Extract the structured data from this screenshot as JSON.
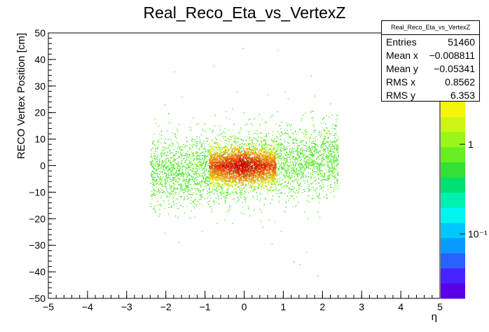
{
  "chart_data": {
    "type": "heatmap",
    "title": "Real_Reco_Eta_vs_VertexZ",
    "xlabel": "η",
    "ylabel": "RECO Vertex Position [cm]",
    "xlim": [
      -5,
      5
    ],
    "ylim": [
      -50,
      50
    ],
    "x_ticks": [
      "−5",
      "−4",
      "−3",
      "−2",
      "−1",
      "0",
      "1",
      "2",
      "3",
      "4",
      "5"
    ],
    "y_ticks": [
      "−50",
      "−40",
      "−30",
      "−20",
      "−10",
      "0",
      "10",
      "20",
      "30",
      "40",
      "50"
    ],
    "color_scale": {
      "log": true,
      "labels": [
        "1",
        "10⁻¹"
      ],
      "colors": [
        "#5a00e6",
        "#4a22ff",
        "#2a62ff",
        "#0a9aff",
        "#00c8ff",
        "#00f5f0",
        "#00f0b0",
        "#00e070",
        "#33e033",
        "#66ee22",
        "#99f51a",
        "#ccf515",
        "#f5f50a"
      ]
    },
    "distribution": {
      "eta_extent": [
        -2.4,
        2.4
      ],
      "vertex_z_core": [
        -12,
        12
      ],
      "hot_region_eta": [
        -0.9,
        0.8
      ],
      "hot_region_z": [
        -7,
        7
      ]
    },
    "stats": {
      "title": "Real_Reco_Eta_vs_VertexZ",
      "rows": [
        {
          "label": "Entries",
          "value": "51460"
        },
        {
          "label": "Mean x",
          "value": "−0.008811"
        },
        {
          "label": "Mean y",
          "value": "−0.05341"
        },
        {
          "label": "RMS x",
          "value": "0.8562"
        },
        {
          "label": "RMS y",
          "value": "6.353"
        }
      ]
    }
  }
}
